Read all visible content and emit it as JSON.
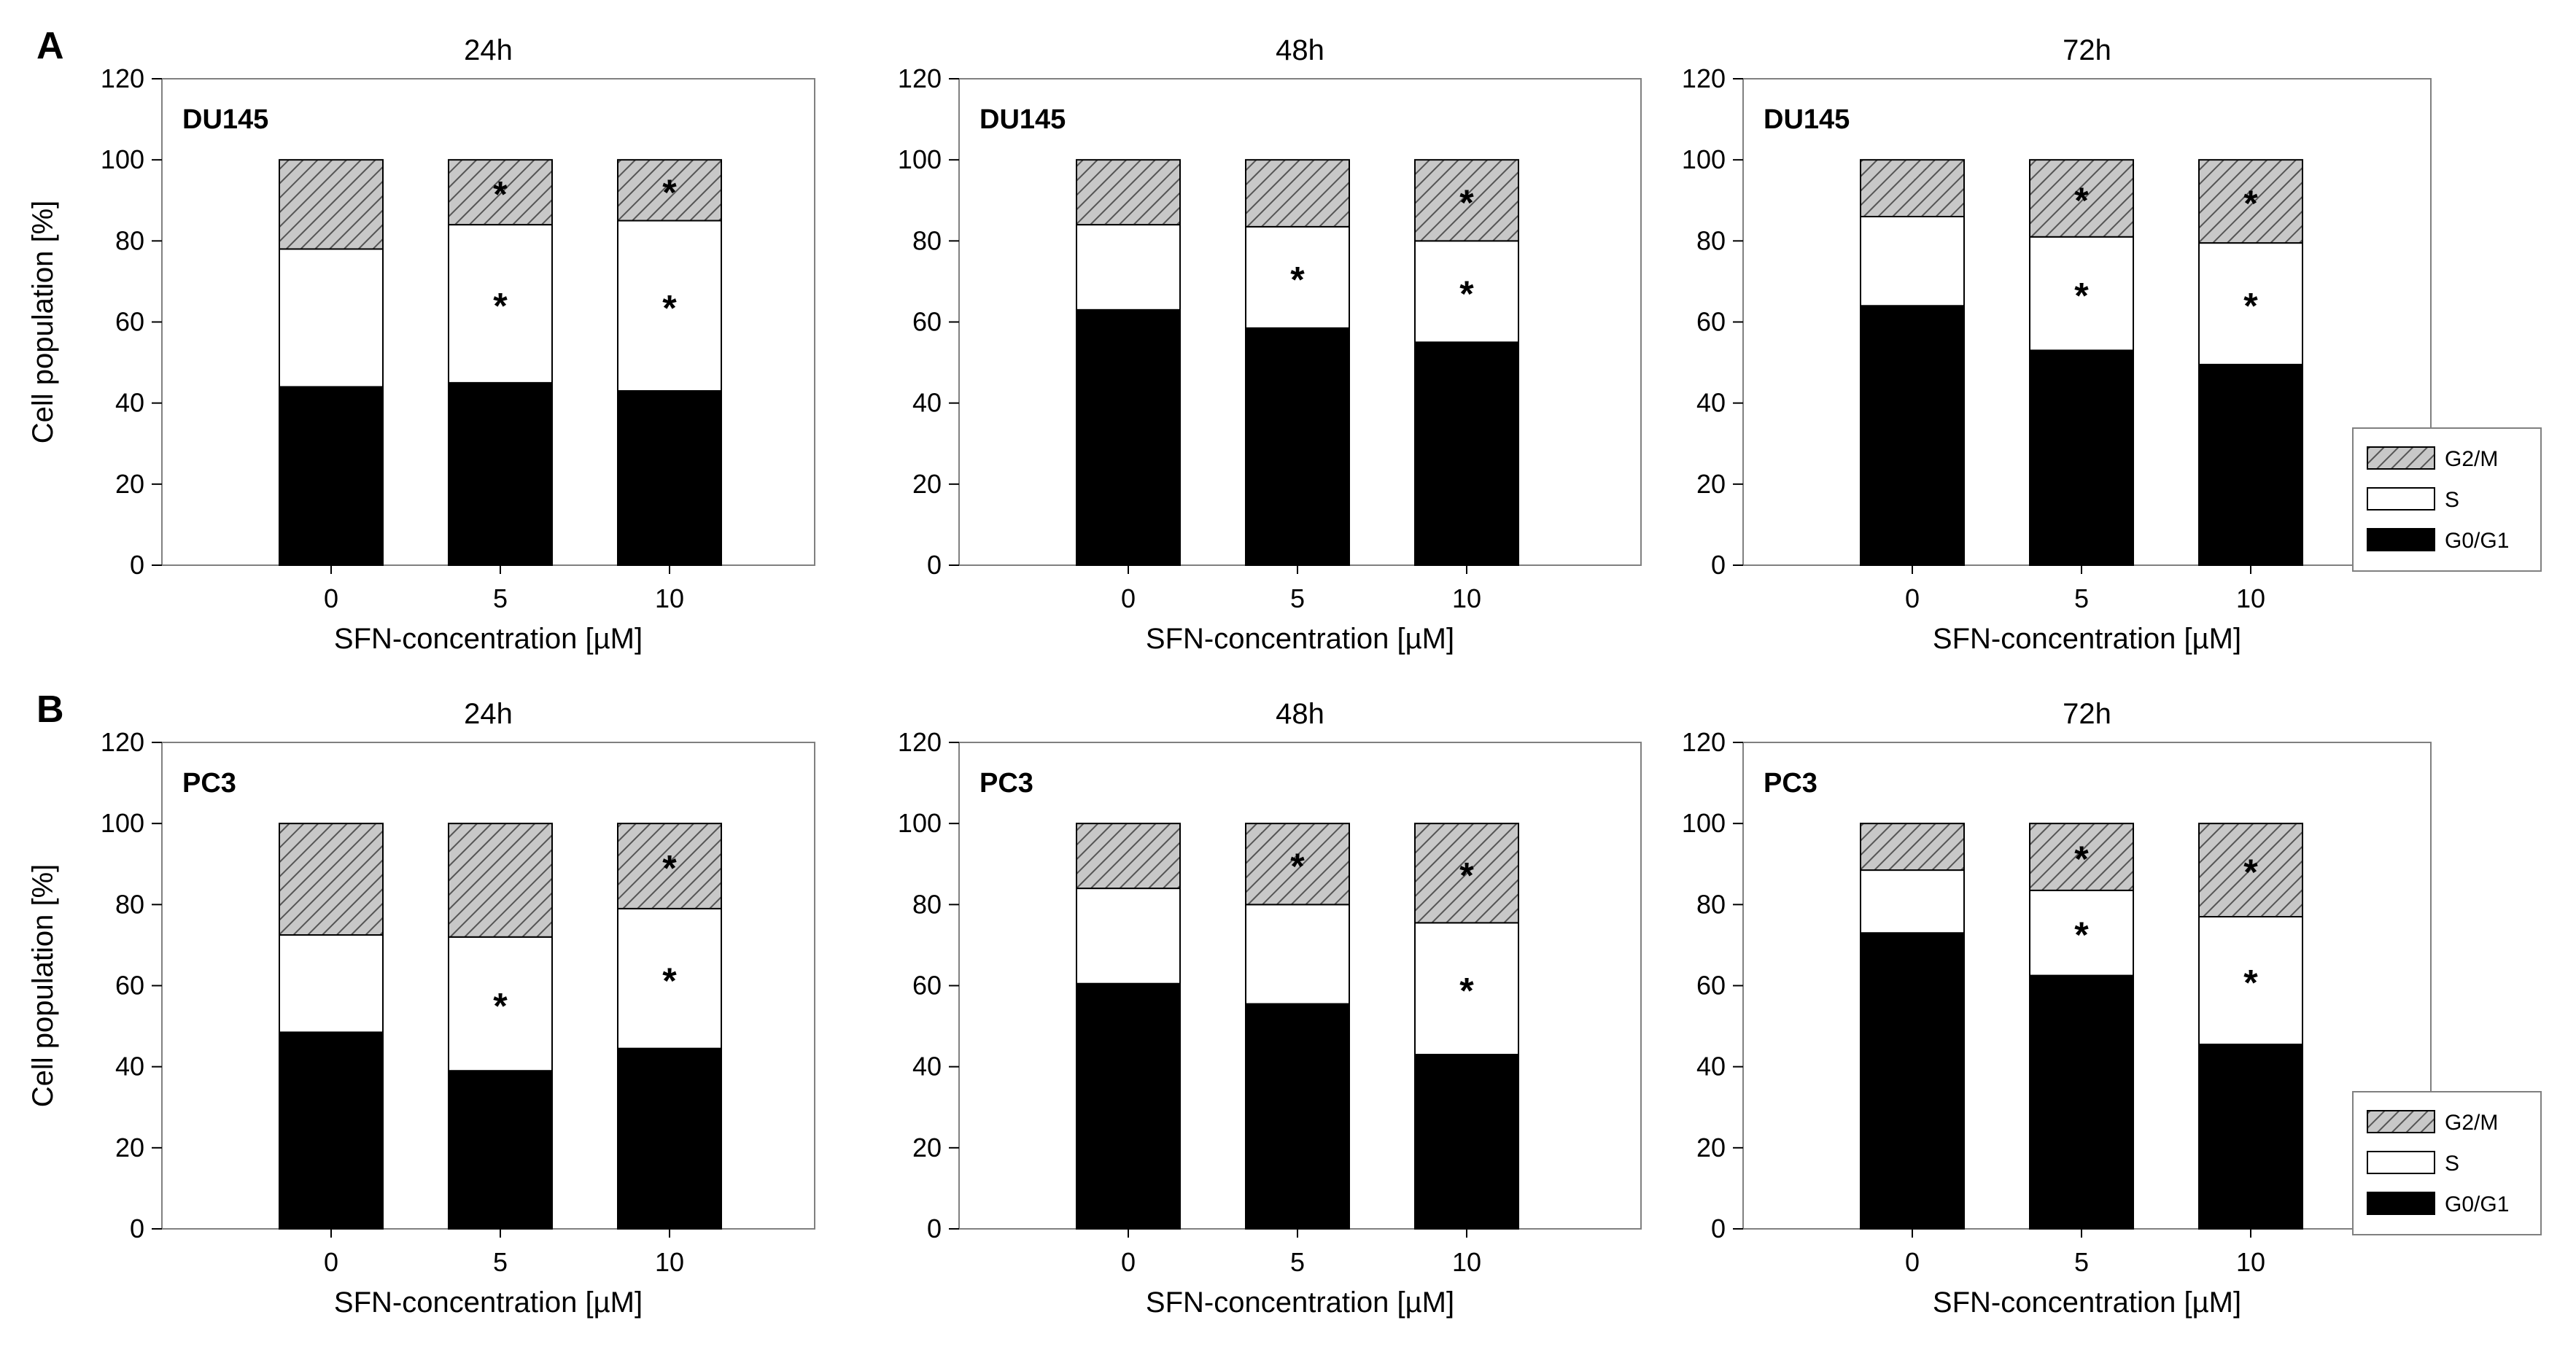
{
  "chart_data": {
    "type": "bar",
    "stacked": true,
    "xlabel": "SFN-concentration [µM]",
    "ylabel": "Cell population [%]",
    "ylim": [
      0,
      120
    ],
    "yticks": [
      0,
      20,
      40,
      60,
      80,
      100,
      120
    ],
    "categories": [
      "0",
      "5",
      "10"
    ],
    "legend": {
      "placement": "right of 72h panels",
      "entries": [
        {
          "name": "G2/M",
          "pattern": "hatched",
          "color": "#c8c8c8"
        },
        {
          "name": "S",
          "pattern": "solid",
          "color": "#ffffff"
        },
        {
          "name": "G0/G1",
          "pattern": "solid",
          "color": "#000000"
        }
      ]
    },
    "rows": [
      {
        "letter": "A",
        "cell_line": "DU145",
        "panels": [
          {
            "title": "24h",
            "series": [
              {
                "name": "G0/G1",
                "values": [
                  44,
                  45,
                  43
                ],
                "significant": [
                  false,
                  false,
                  false
                ]
              },
              {
                "name": "S",
                "values": [
                  34,
                  39,
                  42
                ],
                "significant": [
                  false,
                  true,
                  true
                ]
              },
              {
                "name": "G2/M",
                "values": [
                  22,
                  16,
                  15
                ],
                "significant": [
                  false,
                  true,
                  true
                ]
              }
            ]
          },
          {
            "title": "48h",
            "series": [
              {
                "name": "G0/G1",
                "values": [
                  63,
                  58.5,
                  55
                ],
                "significant": [
                  false,
                  true,
                  true
                ]
              },
              {
                "name": "S",
                "values": [
                  21,
                  25,
                  25
                ],
                "significant": [
                  false,
                  true,
                  true
                ]
              },
              {
                "name": "G2/M",
                "values": [
                  16,
                  16.5,
                  20
                ],
                "significant": [
                  false,
                  false,
                  true
                ]
              }
            ]
          },
          {
            "title": "72h",
            "series": [
              {
                "name": "G0/G1",
                "values": [
                  64,
                  53,
                  49.5
                ],
                "significant": [
                  false,
                  true,
                  true
                ]
              },
              {
                "name": "S",
                "values": [
                  22,
                  28,
                  30
                ],
                "significant": [
                  false,
                  true,
                  true
                ]
              },
              {
                "name": "G2/M",
                "values": [
                  14,
                  19,
                  20.5
                ],
                "significant": [
                  false,
                  true,
                  true
                ]
              }
            ]
          }
        ]
      },
      {
        "letter": "B",
        "cell_line": "PC3",
        "panels": [
          {
            "title": "24h",
            "series": [
              {
                "name": "G0/G1",
                "values": [
                  48.5,
                  39,
                  44.5
                ],
                "significant": [
                  false,
                  true,
                  false
                ]
              },
              {
                "name": "S",
                "values": [
                  24,
                  33,
                  34.5
                ],
                "significant": [
                  false,
                  true,
                  true
                ]
              },
              {
                "name": "G2/M",
                "values": [
                  27.5,
                  28,
                  21
                ],
                "significant": [
                  false,
                  false,
                  true
                ]
              }
            ]
          },
          {
            "title": "48h",
            "series": [
              {
                "name": "G0/G1",
                "values": [
                  60.5,
                  55.5,
                  43
                ],
                "significant": [
                  false,
                  true,
                  true
                ]
              },
              {
                "name": "S",
                "values": [
                  23.5,
                  24.5,
                  32.5
                ],
                "significant": [
                  false,
                  false,
                  true
                ]
              },
              {
                "name": "G2/M",
                "values": [
                  16,
                  20,
                  24.5
                ],
                "significant": [
                  false,
                  true,
                  true
                ]
              }
            ]
          },
          {
            "title": "72h",
            "series": [
              {
                "name": "G0/G1",
                "values": [
                  73,
                  62.5,
                  45.5
                ],
                "significant": [
                  false,
                  true,
                  true
                ]
              },
              {
                "name": "S",
                "values": [
                  15.5,
                  21,
                  31.5
                ],
                "significant": [
                  false,
                  true,
                  true
                ]
              },
              {
                "name": "G2/M",
                "values": [
                  11.5,
                  16.5,
                  23
                ],
                "significant": [
                  false,
                  true,
                  true
                ]
              }
            ]
          }
        ]
      }
    ],
    "significance_marker": "*"
  }
}
